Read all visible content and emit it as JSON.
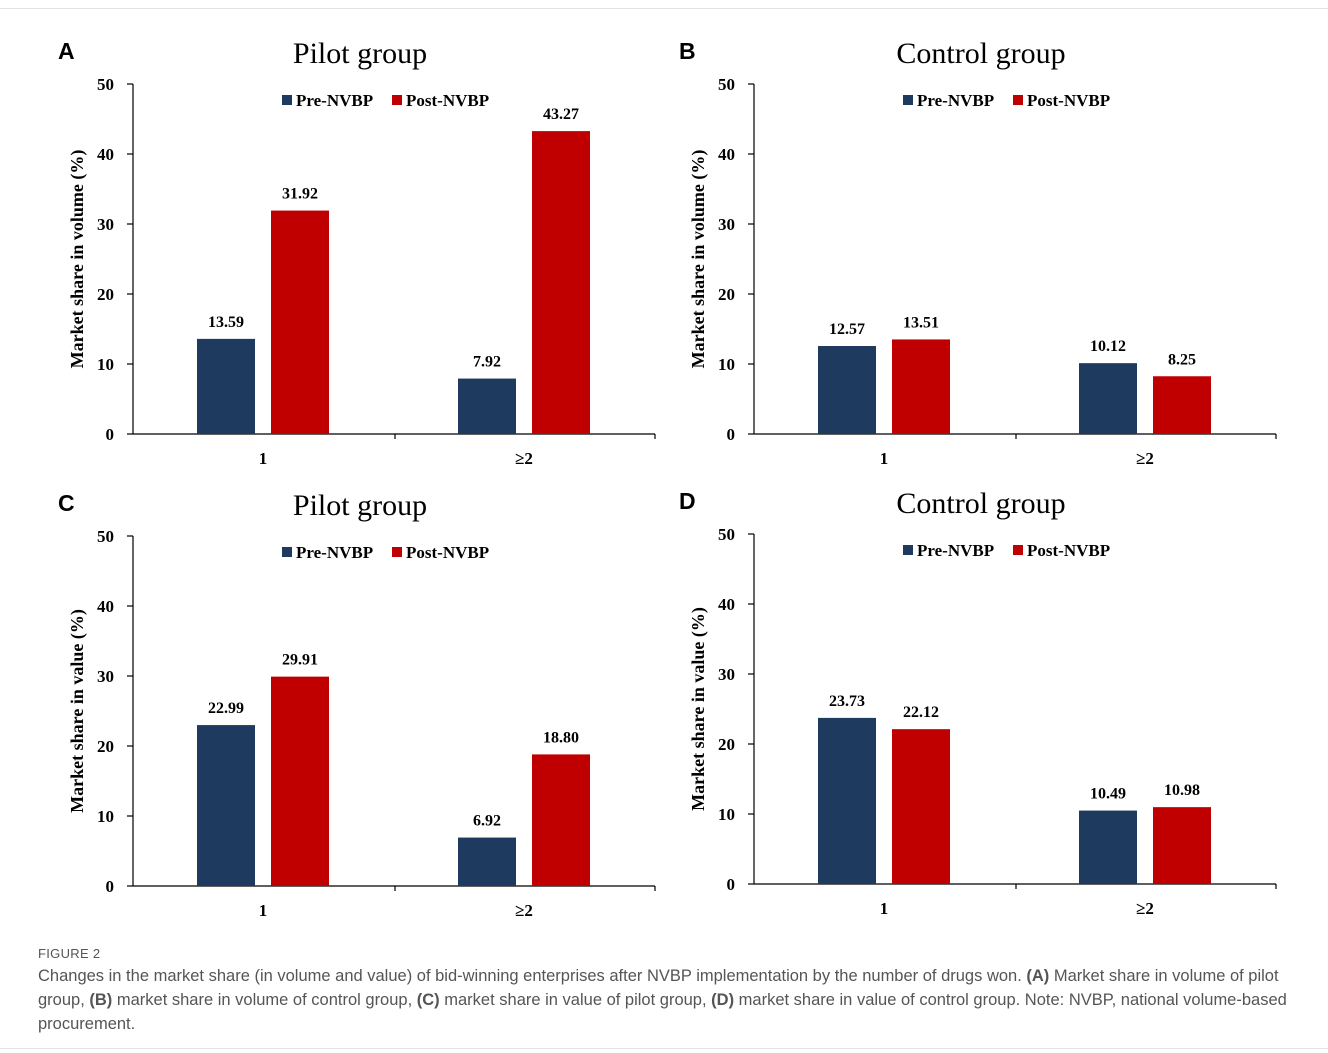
{
  "figure": {
    "label": "FIGURE 2",
    "caption_parts": [
      {
        "t": "Changes in the market share (in volume and value) of bid-winning enterprises after NVBP implementation by the number of drugs won. ",
        "b": false
      },
      {
        "t": "(A)",
        "b": true
      },
      {
        "t": " Market share in volume of pilot group, ",
        "b": false
      },
      {
        "t": "(B)",
        "b": true
      },
      {
        "t": " market share in volume of control group, ",
        "b": false
      },
      {
        "t": "(C)",
        "b": true
      },
      {
        "t": " market share in value of pilot group, ",
        "b": false
      },
      {
        "t": "(D)",
        "b": true
      },
      {
        "t": " market share in value of control group. Note: NVBP, national volume-based procurement.",
        "b": false
      }
    ]
  },
  "colors": {
    "pre": "#1f3a5f",
    "post": "#c00000",
    "axis": "#000000"
  },
  "chart_data": [
    {
      "panel": "A",
      "type": "bar",
      "title": "Pilot group",
      "ylabel": "Market share in volume (%)",
      "xlabel": "",
      "categories": [
        "1",
        "≥2"
      ],
      "ylim": [
        0,
        50
      ],
      "yticks": [
        0,
        10,
        20,
        30,
        40,
        50
      ],
      "legend": "top-center",
      "series": [
        {
          "name": "Pre-NVBP",
          "values": [
            13.59,
            7.92
          ],
          "labels": [
            "13.59",
            "7.92"
          ]
        },
        {
          "name": "Post-NVBP",
          "values": [
            31.92,
            43.27
          ],
          "labels": [
            "31.92",
            "43.27"
          ]
        }
      ]
    },
    {
      "panel": "B",
      "type": "bar",
      "title": "Control group",
      "ylabel": "Market share in volume (%)",
      "xlabel": "",
      "categories": [
        "1",
        "≥2"
      ],
      "ylim": [
        0,
        50
      ],
      "yticks": [
        0,
        10,
        20,
        30,
        40,
        50
      ],
      "legend": "top-center",
      "series": [
        {
          "name": "Pre-NVBP",
          "values": [
            12.57,
            10.12
          ],
          "labels": [
            "12.57",
            "10.12"
          ]
        },
        {
          "name": "Post-NVBP",
          "values": [
            13.51,
            8.25
          ],
          "labels": [
            "13.51",
            "8.25"
          ]
        }
      ]
    },
    {
      "panel": "C",
      "type": "bar",
      "title": "Pilot group",
      "ylabel": "Market share in value (%)",
      "xlabel": "",
      "categories": [
        "1",
        "≥2"
      ],
      "ylim": [
        0,
        50
      ],
      "yticks": [
        0,
        10,
        20,
        30,
        40,
        50
      ],
      "legend": "top-center",
      "series": [
        {
          "name": "Pre-NVBP",
          "values": [
            22.99,
            6.92
          ],
          "labels": [
            "22.99",
            "6.92"
          ]
        },
        {
          "name": "Post-NVBP",
          "values": [
            29.91,
            18.8
          ],
          "labels": [
            "29.91",
            "18.80"
          ]
        }
      ]
    },
    {
      "panel": "D",
      "type": "bar",
      "title": "Control group",
      "ylabel": "Market share in value (%)",
      "xlabel": "",
      "categories": [
        "1",
        "≥2"
      ],
      "ylim": [
        0,
        50
      ],
      "yticks": [
        0,
        10,
        20,
        30,
        40,
        50
      ],
      "legend": "top-center",
      "series": [
        {
          "name": "Pre-NVBP",
          "values": [
            23.73,
            10.49
          ],
          "labels": [
            "23.73",
            "10.49"
          ]
        },
        {
          "name": "Post-NVBP",
          "values": [
            22.12,
            10.98
          ],
          "labels": [
            "22.12",
            "10.98"
          ]
        }
      ]
    }
  ]
}
